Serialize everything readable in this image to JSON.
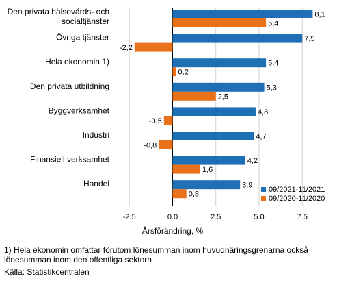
{
  "chart_data": {
    "type": "bar",
    "orientation": "horizontal",
    "categories": [
      [
        "Den privata hälsovårds- och",
        "socialtjänster"
      ],
      [
        "Övriga tjänster"
      ],
      [
        "Hela ekonomin 1)"
      ],
      [
        "Den privata utbildning"
      ],
      [
        "Byggverksamhet"
      ],
      [
        "Industri"
      ],
      [
        "Finansiell verksamhet"
      ],
      [
        "Handel"
      ]
    ],
    "series": [
      {
        "name": "09/2021-11/2021",
        "color": "#1f6fb4",
        "values": [
          8.1,
          7.5,
          5.4,
          5.3,
          4.8,
          4.7,
          4.2,
          3.9
        ],
        "labels": [
          "8,1",
          "7,5",
          "5,4",
          "5,3",
          "4,8",
          "4,7",
          "4,2",
          "3,9"
        ]
      },
      {
        "name": "09/2020-11/2020",
        "color": "#e8711a",
        "values": [
          5.4,
          -2.2,
          0.2,
          2.5,
          -0.5,
          -0.8,
          1.6,
          0.8
        ],
        "labels": [
          "5,4",
          "-2,2",
          "0,2",
          "2,5",
          "-0,5",
          "-0,8",
          "1,6",
          "0,8"
        ]
      }
    ],
    "xlim": [
      -3.5,
      9.0
    ],
    "xticks": [
      -2.5,
      0.0,
      2.5,
      5.0,
      7.5
    ],
    "xtick_labels": [
      "-2,5",
      "0,0",
      "2,5",
      "5,0",
      "7,5"
    ],
    "xlabel": "Årsförändring, %",
    "grid": "vertical",
    "legend_position": "bottom-right"
  },
  "footnote": {
    "line1": "1) Hela ekonomin omfattar förutom lönesumman inom huvudnäringsgrenarna också",
    "line2": "lönesumman inom den offentliga sektorn",
    "source": "Källa: Statistikcentralen"
  }
}
